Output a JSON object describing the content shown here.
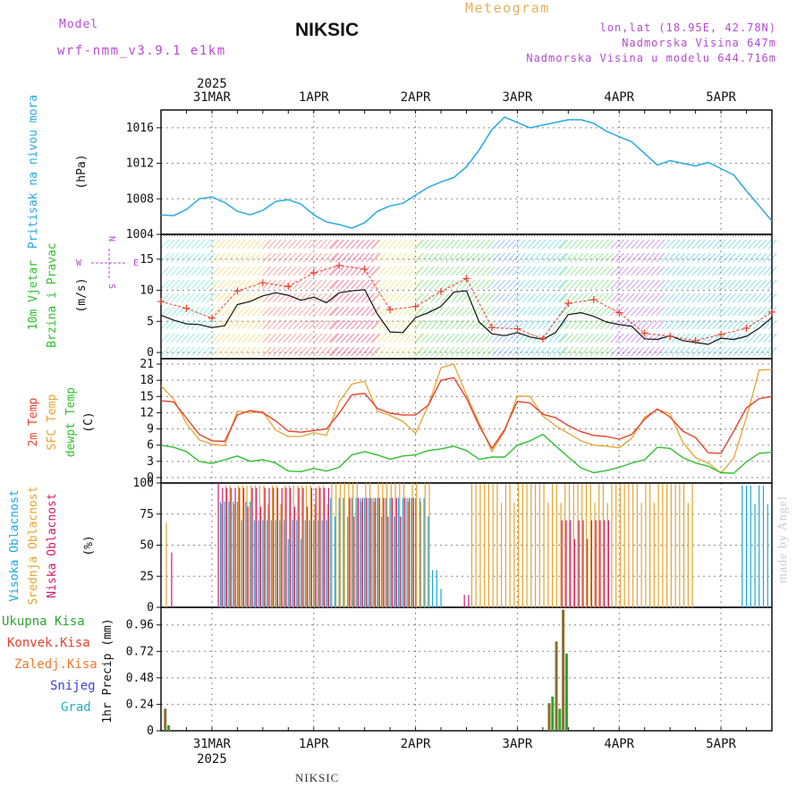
{
  "header": {
    "model_label": "Model",
    "model_name": "wrf-nmm_v3.9.1 e1km",
    "station": "NIKSIC",
    "title": "Meteogram",
    "lonlat": "lon,lat (18.95E, 42.78N)",
    "altitude": "Nadmorska Visina 647m",
    "model_altitude": "Nadmorska Visina u modelu 644.716m",
    "bottom_station": "NIKSIC",
    "made_by": "made by Angel"
  },
  "colors": {
    "pressure": "#29a9e1",
    "wind_speed": "#111111",
    "wind_gust": "#e8412c",
    "temp2m": "#e8412c",
    "sfc_temp": "#e6a431",
    "dewpt": "#2fc02f",
    "cloud_high": "#1aa7e0",
    "cloud_mid": "#e6a431",
    "cloud_low": "#d21b6a",
    "precip_total": "#2fa52f",
    "precip_conv": "#e8412c",
    "precip_frontal": "#f07a2e",
    "snow": "#4040dd",
    "hail": "#20b0c8",
    "purple_text": "#b64ad2"
  },
  "time_axis": {
    "year": "2025",
    "top_labels": [
      "31MAR",
      "1APR",
      "2APR",
      "3APR",
      "4APR",
      "5APR"
    ],
    "bottom_labels": [
      "31MAR",
      "1APR",
      "2APR",
      "3APR",
      "4APR",
      "5APR"
    ],
    "start": "2025-03-30T12:00",
    "end": "2025-04-05T12:00",
    "hours_axis": [
      0,
      144
    ]
  },
  "wind_direction_key": {
    "north": "N",
    "south": "S",
    "east": "E",
    "west": "W"
  },
  "chart_data": [
    {
      "type": "line",
      "panel": "pressure",
      "ylabels": [
        "Pritisak na nivou mora",
        "(hPa)"
      ],
      "ylim": [
        1004,
        1018
      ],
      "yticks": [
        "1004",
        "1008",
        "1012",
        "1016"
      ],
      "grid": true,
      "series": [
        {
          "values_hours": [
            0,
            3,
            6,
            9,
            12,
            15,
            18,
            21,
            24,
            27,
            30,
            33,
            36,
            39,
            42,
            45,
            48,
            51,
            54,
            57,
            60,
            63,
            66,
            69,
            72,
            75,
            78,
            81,
            84,
            87,
            90,
            93,
            96,
            99,
            102,
            105,
            108,
            111,
            114,
            117,
            120,
            123,
            126,
            129,
            132,
            135,
            138,
            141,
            144
          ],
          "values": [
            1006.2,
            1006.1,
            1006.8,
            1008.0,
            1008.2,
            1007.6,
            1006.6,
            1006.2,
            1006.7,
            1007.7,
            1007.9,
            1007.4,
            1006.2,
            1005.4,
            1005.1,
            1004.7,
            1005.3,
            1006.6,
            1007.2,
            1007.5,
            1008.4,
            1009.3,
            1009.9,
            1010.4,
            1011.6,
            1013.5,
            1015.8,
            1017.2,
            1016.6,
            1016.0,
            1016.3,
            1016.6,
            1016.9,
            1016.9,
            1016.5,
            1015.6,
            1015.0,
            1014.4,
            1013.1,
            1011.8,
            1012.3,
            1012.0,
            1011.7,
            1012.1,
            1011.4,
            1010.7,
            1008.9,
            1007.2,
            1005.5
          ]
        }
      ]
    },
    {
      "type": "line",
      "panel": "wind",
      "ylabels": [
        "10m Vjetar",
        "Brzina i Pravac",
        "(m/s)"
      ],
      "ylim": [
        -1,
        19
      ],
      "yticks": [
        "0",
        "5",
        "10",
        "15"
      ],
      "grid": true,
      "series": [
        {
          "values_hours": [
            0,
            3,
            6,
            9,
            12,
            15,
            18,
            21,
            24,
            27,
            30,
            33,
            36,
            39,
            42,
            45,
            48,
            51,
            54,
            57,
            60,
            63,
            66,
            69,
            72,
            75,
            78,
            81,
            84,
            87,
            90,
            93,
            96,
            99,
            102,
            105,
            108,
            111,
            114,
            117,
            120,
            123,
            126,
            129,
            132,
            135,
            138,
            141,
            144
          ],
          "values": [
            6.0,
            5.2,
            4.6,
            4.5,
            4.0,
            4.3,
            7.7,
            8.2,
            9.1,
            9.6,
            9.2,
            8.4,
            8.9,
            8.0,
            9.6,
            9.9,
            10.1,
            6.2,
            3.3,
            3.2,
            5.6,
            6.4,
            7.4,
            9.7,
            9.9,
            4.9,
            3.0,
            2.7,
            3.2,
            2.5,
            2.1,
            3.2,
            6.1,
            6.4,
            5.8,
            4.9,
            4.5,
            4.2,
            2.2,
            2.1,
            2.7,
            1.9,
            1.6,
            1.3,
            2.3,
            2.1,
            2.6,
            3.9,
            5.6
          ]
        },
        {
          "values_hours": [
            0,
            6,
            12,
            18,
            24,
            30,
            36,
            42,
            48,
            54,
            60,
            66,
            72,
            78,
            84,
            90,
            96,
            102,
            108,
            114,
            120,
            126,
            132,
            138,
            144
          ],
          "values": [
            8.2,
            7.1,
            5.5,
            9.9,
            11.2,
            10.6,
            12.8,
            14.0,
            13.4,
            6.9,
            7.4,
            9.8,
            11.9,
            4.0,
            3.8,
            2.2,
            7.9,
            8.5,
            6.4,
            3.1,
            2.6,
            1.9,
            2.9,
            3.9,
            6.5
          ]
        }
      ]
    },
    {
      "type": "line",
      "panel": "temperature",
      "ylabels": [
        "2m Temp",
        "SFC Temp",
        "dewpt Temp",
        "(C)"
      ],
      "ylim": [
        -1,
        22
      ],
      "yticks": [
        "0",
        "3",
        "6",
        "9",
        "12",
        "15",
        "18",
        "21"
      ],
      "grid": true,
      "series": [
        {
          "values_hours": [
            0,
            3,
            6,
            9,
            12,
            15,
            18,
            21,
            24,
            27,
            30,
            33,
            36,
            39,
            42,
            45,
            48,
            51,
            54,
            57,
            60,
            63,
            66,
            69,
            72,
            75,
            78,
            81,
            84,
            87,
            90,
            93,
            96,
            99,
            102,
            105,
            108,
            111,
            114,
            117,
            120,
            123,
            126,
            129,
            132,
            135,
            138,
            141,
            144
          ],
          "values": [
            14.2,
            14.0,
            11.0,
            8.0,
            6.8,
            6.7,
            11.6,
            12.4,
            12.0,
            10.5,
            8.6,
            8.4,
            8.7,
            9.0,
            11.9,
            15.3,
            15.6,
            12.8,
            11.9,
            11.6,
            11.6,
            13.4,
            18.0,
            18.5,
            14.7,
            9.6,
            5.4,
            8.9,
            14.1,
            13.8,
            11.7,
            11.1,
            9.6,
            8.5,
            7.8,
            7.6,
            7.1,
            8.0,
            10.8,
            12.7,
            11.2,
            8.6,
            7.4,
            4.6,
            4.5,
            8.6,
            12.9,
            14.6,
            15.0
          ]
        },
        {
          "values_hours": [
            0,
            3,
            6,
            9,
            12,
            15,
            18,
            21,
            24,
            27,
            30,
            33,
            36,
            39,
            42,
            45,
            48,
            51,
            54,
            57,
            60,
            63,
            66,
            69,
            72,
            75,
            78,
            81,
            84,
            87,
            90,
            93,
            96,
            99,
            102,
            105,
            108,
            111,
            114,
            117,
            120,
            123,
            126,
            129,
            132,
            135,
            138,
            141,
            144
          ],
          "values": [
            17.0,
            14.5,
            10.0,
            7.0,
            6.2,
            5.9,
            12.3,
            12.0,
            12.2,
            8.8,
            7.6,
            7.6,
            8.3,
            7.8,
            14.0,
            17.3,
            17.8,
            12.3,
            11.5,
            10.4,
            8.2,
            13.3,
            20.3,
            21.0,
            15.3,
            10.1,
            4.8,
            8.6,
            15.1,
            15.0,
            11.4,
            9.6,
            8.2,
            6.8,
            6.0,
            5.8,
            5.5,
            7.3,
            11.2,
            12.6,
            11.8,
            6.5,
            3.7,
            2.7,
            0.8,
            3.6,
            11.1,
            19.9,
            20.0
          ]
        },
        {
          "values_hours": [
            0,
            3,
            6,
            9,
            12,
            15,
            18,
            21,
            24,
            27,
            30,
            33,
            36,
            39,
            42,
            45,
            48,
            51,
            54,
            57,
            60,
            63,
            66,
            69,
            72,
            75,
            78,
            81,
            84,
            87,
            90,
            93,
            96,
            99,
            102,
            105,
            108,
            111,
            114,
            117,
            120,
            123,
            126,
            129,
            132,
            135,
            138,
            141,
            144
          ],
          "values": [
            6.0,
            5.6,
            4.8,
            3.0,
            2.6,
            3.3,
            4.0,
            3.0,
            3.3,
            2.7,
            1.2,
            1.1,
            1.7,
            1.2,
            1.9,
            4.2,
            4.8,
            4.2,
            3.4,
            4.0,
            4.2,
            5.0,
            5.3,
            5.8,
            5.0,
            3.4,
            3.8,
            3.8,
            6.0,
            6.8,
            8.0,
            5.9,
            3.8,
            1.8,
            0.9,
            1.3,
            1.9,
            2.7,
            3.3,
            5.6,
            5.4,
            3.7,
            2.7,
            2.1,
            0.9,
            0.8,
            2.9,
            4.5,
            4.7
          ]
        }
      ]
    },
    {
      "type": "bar",
      "panel": "cloud_cover",
      "ylabels": [
        "Visoka Oblacnost",
        "Srednja Oblacnost",
        "Niska Oblacnost",
        "(%)"
      ],
      "ylim": [
        0,
        100
      ],
      "yticks": [
        "0",
        "25",
        "50",
        "75",
        "100"
      ],
      "grid": true,
      "series": [
        {
          "segments_hours": [
            [
              14,
              23,
              85
            ],
            [
              23,
              40,
              70
            ],
            [
              40,
              64,
              88
            ],
            [
              64,
              67,
              30
            ],
            [
              137,
              144,
              98
            ]
          ]
        },
        {
          "segments_hours": [
            [
              1,
              2,
              68
            ],
            [
              14,
              40,
              98
            ],
            [
              40,
              64,
              100
            ],
            [
              73,
              126,
              99
            ]
          ]
        },
        {
          "segments_hours": [
            [
              2,
              3,
              44
            ],
            [
              13,
              14,
              100
            ],
            [
              14,
              40,
              96
            ],
            [
              44,
              60,
              88
            ],
            [
              71,
              73,
              10
            ],
            [
              94,
              106,
              70
            ]
          ]
        }
      ]
    },
    {
      "type": "bar",
      "panel": "precipitation",
      "ylabels": [
        "1hr Precip (mm)"
      ],
      "ylim": [
        0,
        1.12
      ],
      "yticks": [
        "0",
        "0.24",
        "0.48",
        "0.72",
        "0.96"
      ],
      "legend": [
        "Ukupna Kisa",
        "Konvek.Kisa",
        "Zaledj.Kisa",
        "Snijeg",
        "Grad"
      ],
      "grid": true,
      "series": [
        {
          "values_hours": [
            1,
            1.8,
            91.5,
            92.3,
            93.2,
            94.0,
            94.8,
            95.6
          ],
          "values": [
            0.2,
            0.05,
            0.25,
            0.31,
            0.81,
            0.2,
            1.1,
            0.7
          ]
        }
      ]
    }
  ]
}
